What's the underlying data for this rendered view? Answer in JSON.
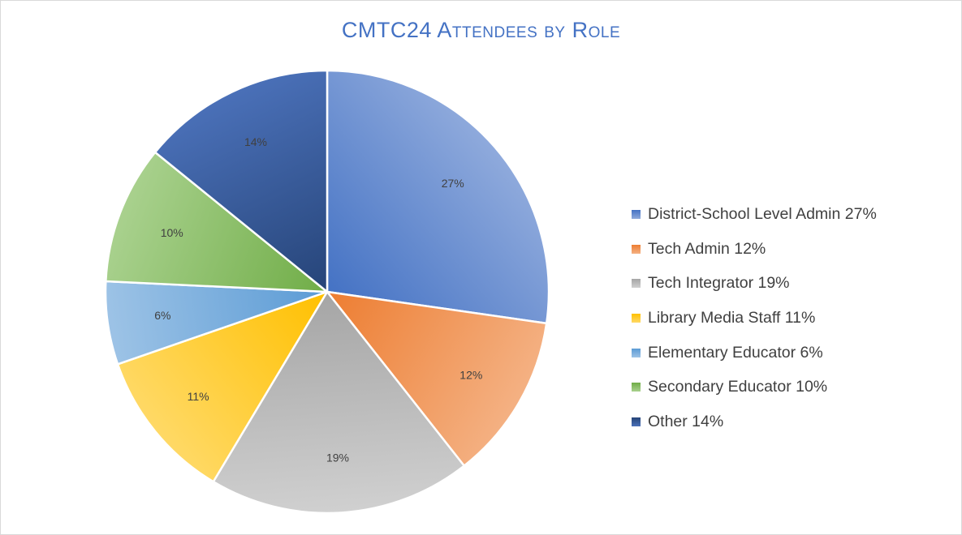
{
  "chart_data": {
    "type": "pie",
    "title": "CMTC24 Attendees by Role",
    "categories": [
      "District-School Level Admin",
      "Tech Admin",
      "Tech Integrator",
      "Library Media Staff",
      "Elementary Educator",
      "Secondary Educator",
      "Other"
    ],
    "values": [
      27,
      12,
      19,
      11,
      6,
      10,
      14
    ],
    "data_labels": [
      "27%",
      "12%",
      "19%",
      "11%",
      "6%",
      "10%",
      "14%"
    ],
    "legend_entries": [
      "District-School Level Admin 27%",
      "Tech Admin 12%",
      "Tech Integrator 19%",
      "Library Media Staff 11%",
      "Elementary Educator 6%",
      "Secondary Educator 10%",
      "Other 14%"
    ],
    "colors": [
      {
        "dark": "#4472c4",
        "light": "#8faadc"
      },
      {
        "dark": "#ed7d31",
        "light": "#f4b183"
      },
      {
        "dark": "#a5a5a5",
        "light": "#d0d0d0"
      },
      {
        "dark": "#ffc000",
        "light": "#ffd966"
      },
      {
        "dark": "#5b9bd5",
        "light": "#9dc3e6"
      },
      {
        "dark": "#70ad47",
        "light": "#a9d18e"
      },
      {
        "dark": "#264478",
        "light": "#4a70b8"
      }
    ],
    "legend_position": "right"
  }
}
